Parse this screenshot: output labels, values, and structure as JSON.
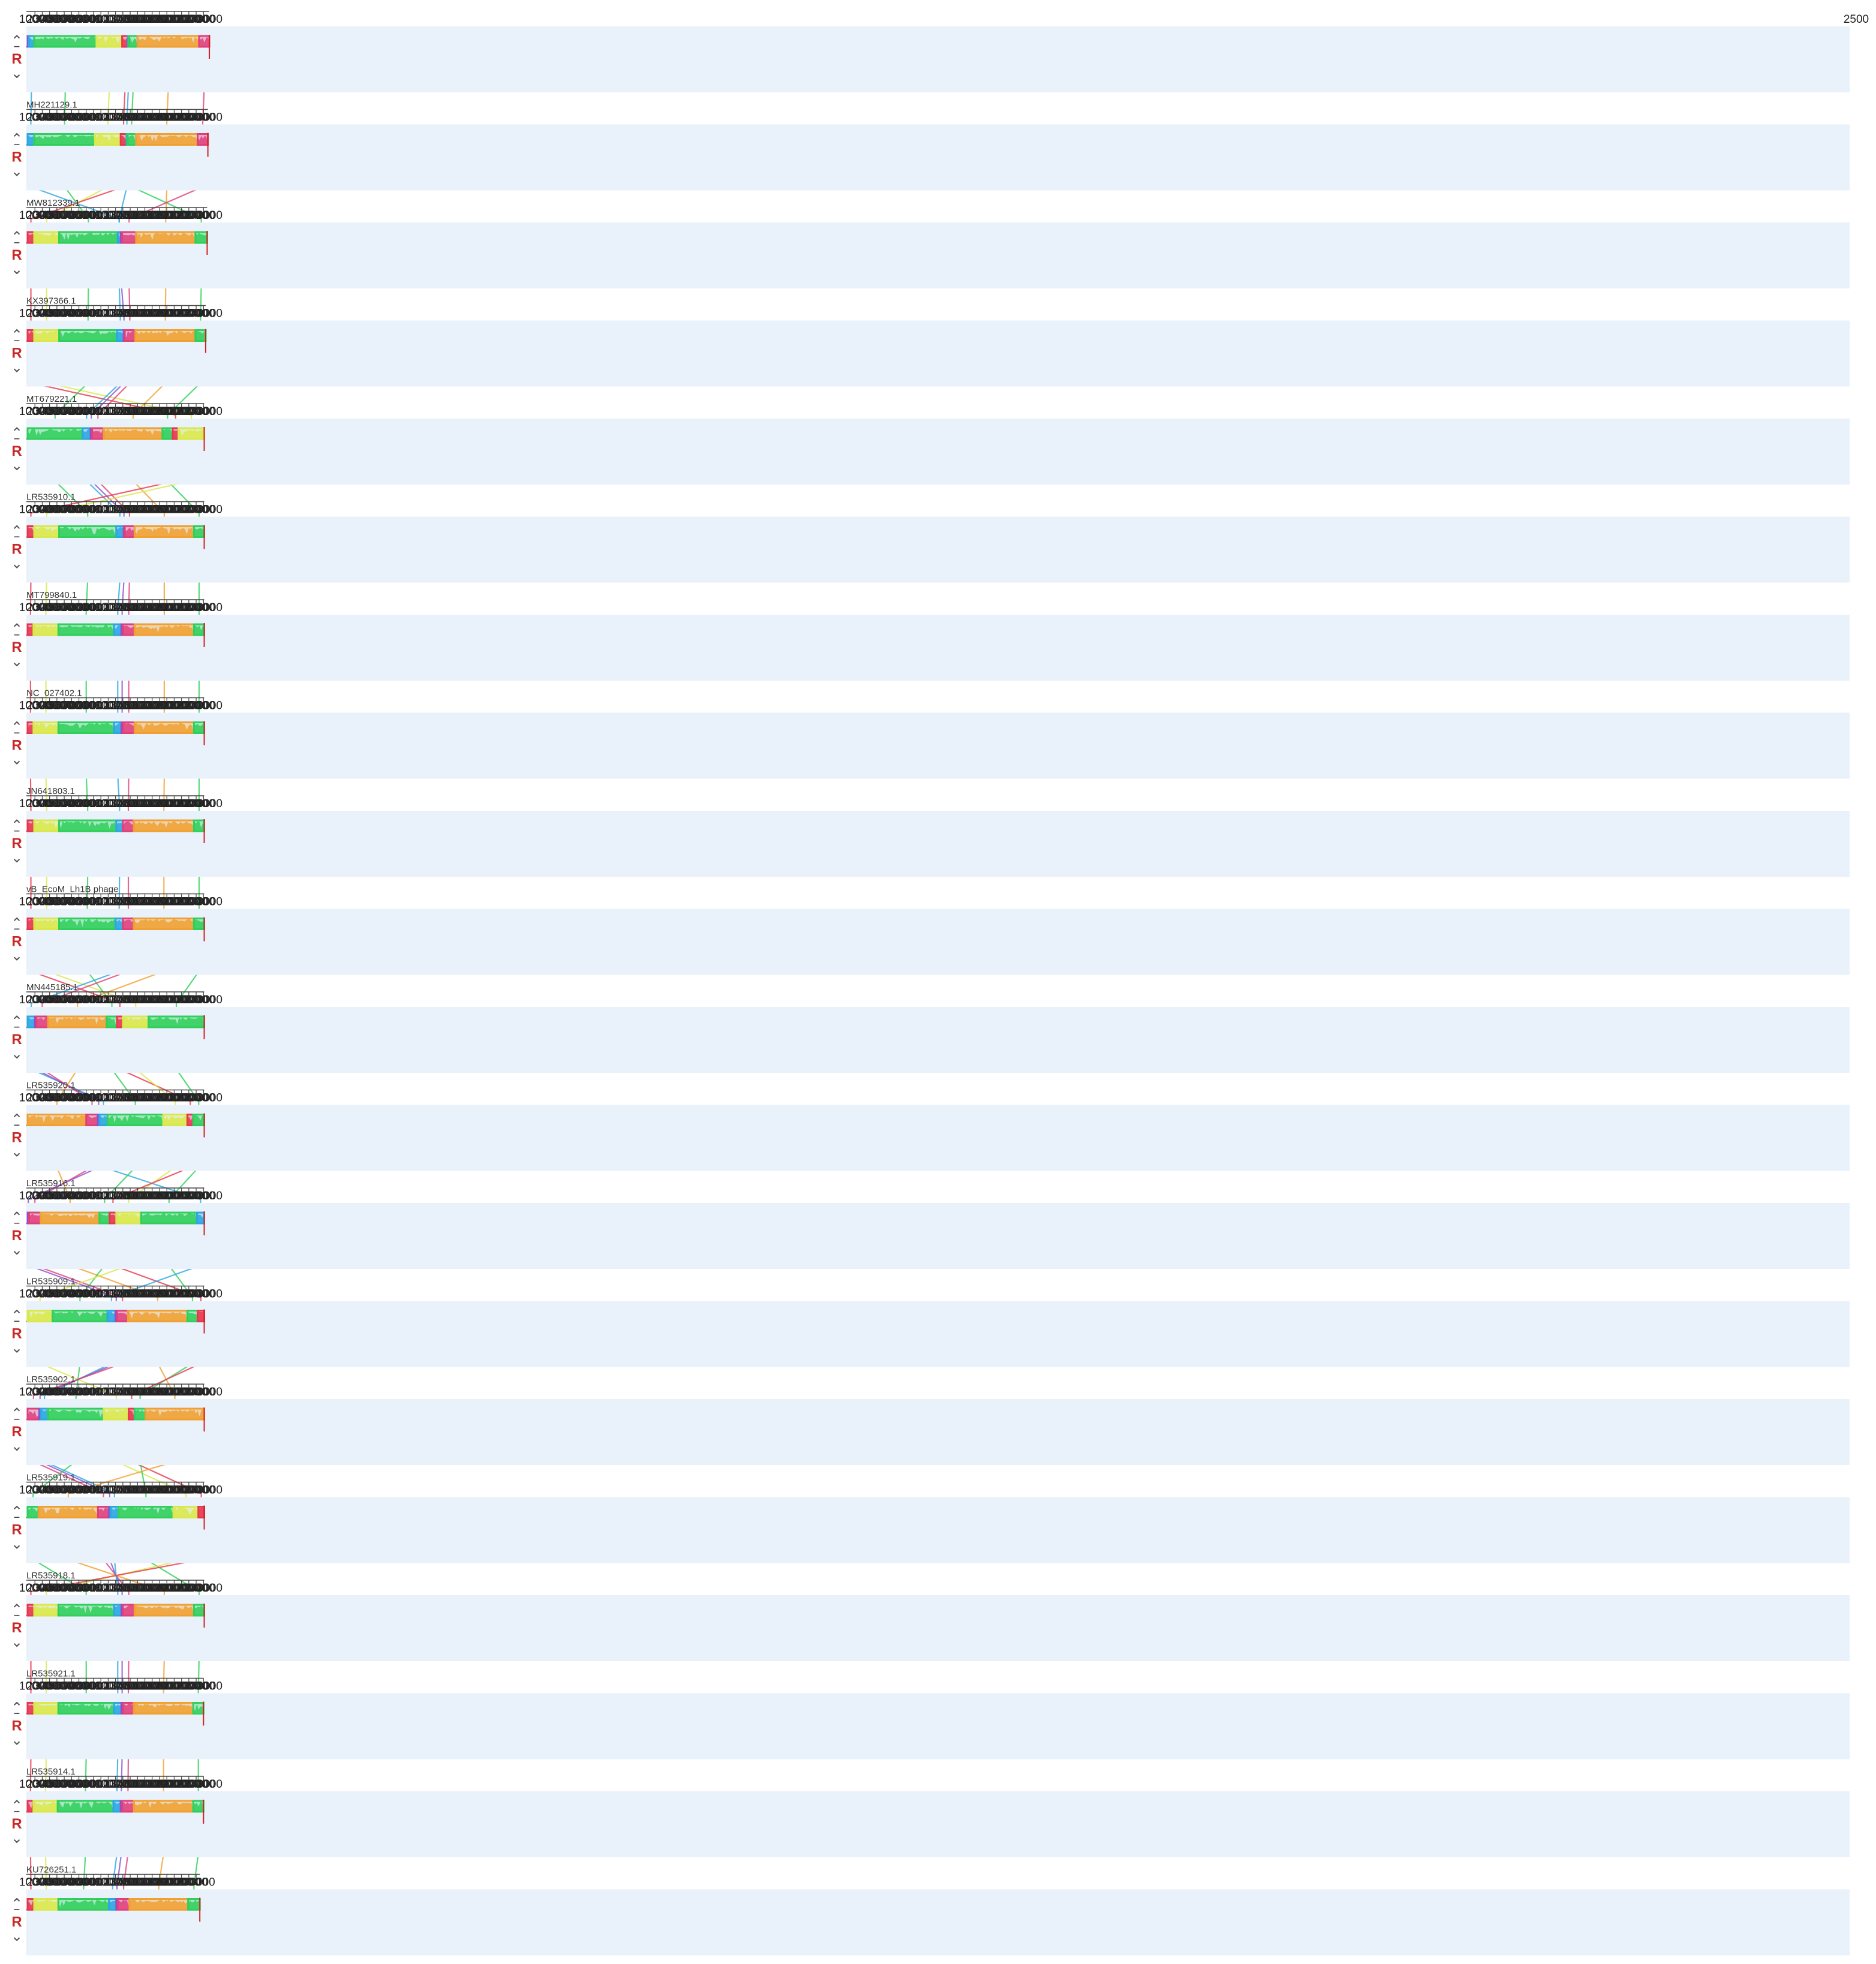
{
  "app": {
    "name": ""
  },
  "axis": {
    "ticks": [
      10000,
      20000,
      30000,
      40000,
      50000,
      60000,
      70000,
      80000,
      90000,
      100000,
      110000,
      120000,
      130000,
      140000,
      150000,
      160000,
      170000,
      180000,
      190000,
      200000,
      210000,
      220000,
      230000,
      240000
    ],
    "first_track_end_label": "2500"
  },
  "colors": {
    "red": "#e8364d",
    "yellow": "#d9e84a",
    "green": "#2fcf5b",
    "blue": "#2aa7e0",
    "purple": "#8a4fd0",
    "magenta": "#e0407a",
    "orange": "#f0a030",
    "panel_bg": "#e9f1fb"
  },
  "controls": {
    "up": "⌃",
    "reverse": "R",
    "minus": "–",
    "down": "⌄"
  },
  "sequences": [
    {
      "name": "",
      "length": 248000,
      "blocks": [
        [
          "purple",
          0,
          1500
        ],
        [
          "blue",
          1500,
          9000
        ],
        [
          "green",
          9000,
          94000
        ],
        [
          "yellow",
          94000,
          129000
        ],
        [
          "red",
          129000,
          137000
        ],
        [
          "blue",
          137000,
          138000
        ],
        [
          "green",
          138000,
          150000
        ],
        [
          "orange",
          150000,
          234000
        ],
        [
          "magenta",
          234000,
          248000
        ]
      ]
    },
    {
      "name": "MH221129.1",
      "length": 246000,
      "blocks": [
        [
          "blue",
          0,
          9000
        ],
        [
          "green",
          9000,
          92000
        ],
        [
          "yellow",
          92000,
          127000
        ],
        [
          "red",
          127000,
          135000
        ],
        [
          "blue",
          135000,
          136000
        ],
        [
          "green",
          136000,
          148000
        ],
        [
          "orange",
          148000,
          232000
        ],
        [
          "magenta",
          232000,
          246000
        ]
      ]
    },
    {
      "name": "MW812339.1",
      "length": 245000,
      "blocks": [
        [
          "red",
          0,
          9000
        ],
        [
          "yellow",
          9000,
          43000
        ],
        [
          "green",
          43000,
          123000
        ],
        [
          "blue",
          123000,
          127000
        ],
        [
          "purple",
          127000,
          129000
        ],
        [
          "magenta",
          129000,
          148000
        ],
        [
          "orange",
          148000,
          229000
        ],
        [
          "green",
          229000,
          245000
        ]
      ]
    },
    {
      "name": "KX397366.1",
      "length": 243000,
      "blocks": [
        [
          "red",
          0,
          9000
        ],
        [
          "yellow",
          9000,
          43000
        ],
        [
          "green",
          43000,
          122000
        ],
        [
          "blue",
          122000,
          131000
        ],
        [
          "purple",
          131000,
          132000
        ],
        [
          "magenta",
          132000,
          147000
        ],
        [
          "orange",
          147000,
          229000
        ],
        [
          "green",
          229000,
          243000
        ]
      ]
    },
    {
      "name": "MT679221.1",
      "length": 241000,
      "blocks": [
        [
          "green",
          0,
          75000
        ],
        [
          "blue",
          75000,
          86000
        ],
        [
          "purple",
          86000,
          88000
        ],
        [
          "magenta",
          88000,
          104000
        ],
        [
          "orange",
          104000,
          184000
        ],
        [
          "green",
          184000,
          198000
        ],
        [
          "red",
          198000,
          206000
        ],
        [
          "yellow",
          206000,
          241000
        ]
      ]
    },
    {
      "name": "LR535910.1",
      "length": 241000,
      "blocks": [
        [
          "red",
          0,
          9000
        ],
        [
          "yellow",
          9000,
          43000
        ],
        [
          "green",
          43000,
          121000
        ],
        [
          "blue",
          121000,
          131000
        ],
        [
          "purple",
          131000,
          132000
        ],
        [
          "magenta",
          132000,
          146000
        ],
        [
          "orange",
          146000,
          227000
        ],
        [
          "green",
          227000,
          241000
        ]
      ]
    },
    {
      "name": "MT799840.1",
      "length": 241000,
      "blocks": [
        [
          "red",
          0,
          8000
        ],
        [
          "yellow",
          8000,
          42000
        ],
        [
          "green",
          42000,
          118000
        ],
        [
          "blue",
          118000,
          128000
        ],
        [
          "purple",
          128000,
          130000
        ],
        [
          "magenta",
          130000,
          146000
        ],
        [
          "orange",
          146000,
          227000
        ],
        [
          "green",
          227000,
          241000
        ]
      ]
    },
    {
      "name": "NC_027402.1",
      "length": 241000,
      "blocks": [
        [
          "red",
          0,
          8000
        ],
        [
          "yellow",
          8000,
          42000
        ],
        [
          "green",
          42000,
          118000
        ],
        [
          "blue",
          118000,
          128000
        ],
        [
          "purple",
          128000,
          130000
        ],
        [
          "magenta",
          130000,
          146000
        ],
        [
          "orange",
          146000,
          227000
        ],
        [
          "green",
          227000,
          241000
        ]
      ]
    },
    {
      "name": "JN641803.1",
      "length": 241000,
      "blocks": [
        [
          "red",
          0,
          9000
        ],
        [
          "yellow",
          9000,
          43000
        ],
        [
          "green",
          43000,
          121000
        ],
        [
          "blue",
          121000,
          130000
        ],
        [
          "magenta",
          130000,
          145000
        ],
        [
          "orange",
          145000,
          227000
        ],
        [
          "green",
          227000,
          241000
        ]
      ]
    },
    {
      "name": "vB_EcoM_Lh1B phage",
      "length": 241000,
      "blocks": [
        [
          "red",
          0,
          9000
        ],
        [
          "yellow",
          9000,
          43000
        ],
        [
          "green",
          43000,
          120000
        ],
        [
          "blue",
          120000,
          130000
        ],
        [
          "magenta",
          130000,
          145000
        ],
        [
          "orange",
          145000,
          227000
        ],
        [
          "green",
          227000,
          241000
        ]
      ]
    },
    {
      "name": "MN445185.1",
      "length": 241000,
      "blocks": [
        [
          "blue",
          0,
          10000
        ],
        [
          "purple",
          10000,
          12000
        ],
        [
          "magenta",
          12000,
          28000
        ],
        [
          "orange",
          28000,
          108000
        ],
        [
          "green",
          108000,
          122000
        ],
        [
          "red",
          122000,
          130000
        ],
        [
          "yellow",
          130000,
          165000
        ],
        [
          "green",
          165000,
          241000
        ]
      ]
    },
    {
      "name": "LR535920.1",
      "length": 241000,
      "blocks": [
        [
          "orange",
          0,
          80000
        ],
        [
          "magenta",
          80000,
          96000
        ],
        [
          "purple",
          96000,
          98000
        ],
        [
          "blue",
          98000,
          109000
        ],
        [
          "green",
          109000,
          185000
        ],
        [
          "yellow",
          185000,
          218000
        ],
        [
          "red",
          218000,
          226000
        ],
        [
          "green",
          226000,
          241000
        ]
      ]
    },
    {
      "name": "LR535916.1",
      "length": 241000,
      "blocks": [
        [
          "purple",
          0,
          2000
        ],
        [
          "magenta",
          2000,
          18000
        ],
        [
          "orange",
          18000,
          98000
        ],
        [
          "green",
          98000,
          112000
        ],
        [
          "red",
          112000,
          121000
        ],
        [
          "yellow",
          121000,
          155000
        ],
        [
          "green",
          155000,
          231000
        ],
        [
          "blue",
          231000,
          241000
        ]
      ]
    },
    {
      "name": "LR535909.1",
      "length": 241000,
      "blocks": [
        [
          "yellow",
          0,
          34000
        ],
        [
          "green",
          34000,
          109000
        ],
        [
          "blue",
          109000,
          120000
        ],
        [
          "purple",
          120000,
          122000
        ],
        [
          "magenta",
          122000,
          137000
        ],
        [
          "orange",
          137000,
          218000
        ],
        [
          "green",
          218000,
          232000
        ],
        [
          "red",
          232000,
          241000
        ]
      ]
    },
    {
      "name": "LR535902.1",
      "length": 241000,
      "blocks": [
        [
          "magenta",
          0,
          16000
        ],
        [
          "purple",
          16000,
          18000
        ],
        [
          "blue",
          18000,
          28000
        ],
        [
          "green",
          28000,
          104000
        ],
        [
          "yellow",
          104000,
          138000
        ],
        [
          "red",
          138000,
          146000
        ],
        [
          "green",
          146000,
          161000
        ],
        [
          "orange",
          161000,
          241000
        ]
      ]
    },
    {
      "name": "LR535919.1",
      "length": 241000,
      "blocks": [
        [
          "green",
          0,
          15000
        ],
        [
          "orange",
          15000,
          96000
        ],
        [
          "magenta",
          96000,
          111000
        ],
        [
          "purple",
          111000,
          113000
        ],
        [
          "blue",
          113000,
          124000
        ],
        [
          "green",
          124000,
          199000
        ],
        [
          "yellow",
          199000,
          233000
        ],
        [
          "red",
          233000,
          241000
        ]
      ]
    },
    {
      "name": "LR535918.1",
      "length": 241000,
      "blocks": [
        [
          "red",
          0,
          9000
        ],
        [
          "yellow",
          9000,
          42000
        ],
        [
          "green",
          42000,
          118000
        ],
        [
          "blue",
          118000,
          128000
        ],
        [
          "purple",
          128000,
          130000
        ],
        [
          "magenta",
          130000,
          146000
        ],
        [
          "orange",
          146000,
          227000
        ],
        [
          "green",
          227000,
          241000
        ]
      ]
    },
    {
      "name": "LR535921.1",
      "length": 240000,
      "blocks": [
        [
          "red",
          0,
          9000
        ],
        [
          "yellow",
          9000,
          42000
        ],
        [
          "green",
          42000,
          118000
        ],
        [
          "blue",
          118000,
          128000
        ],
        [
          "purple",
          128000,
          130000
        ],
        [
          "magenta",
          130000,
          145000
        ],
        [
          "orange",
          145000,
          226000
        ],
        [
          "green",
          226000,
          240000
        ]
      ]
    },
    {
      "name": "LR535914.1",
      "length": 240000,
      "blocks": [
        [
          "red",
          0,
          8000
        ],
        [
          "yellow",
          8000,
          41000
        ],
        [
          "green",
          41000,
          117000
        ],
        [
          "blue",
          117000,
          127000
        ],
        [
          "purple",
          127000,
          129000
        ],
        [
          "magenta",
          129000,
          145000
        ],
        [
          "orange",
          145000,
          226000
        ],
        [
          "green",
          226000,
          240000
        ]
      ]
    },
    {
      "name": "KU726251.1",
      "length": 235000,
      "blocks": [
        [
          "red",
          0,
          9000
        ],
        [
          "yellow",
          9000,
          42000
        ],
        [
          "green",
          42000,
          111000
        ],
        [
          "blue",
          111000,
          121000
        ],
        [
          "purple",
          121000,
          123000
        ],
        [
          "magenta",
          123000,
          139000
        ],
        [
          "orange",
          139000,
          219000
        ],
        [
          "green",
          219000,
          235000
        ]
      ]
    }
  ]
}
